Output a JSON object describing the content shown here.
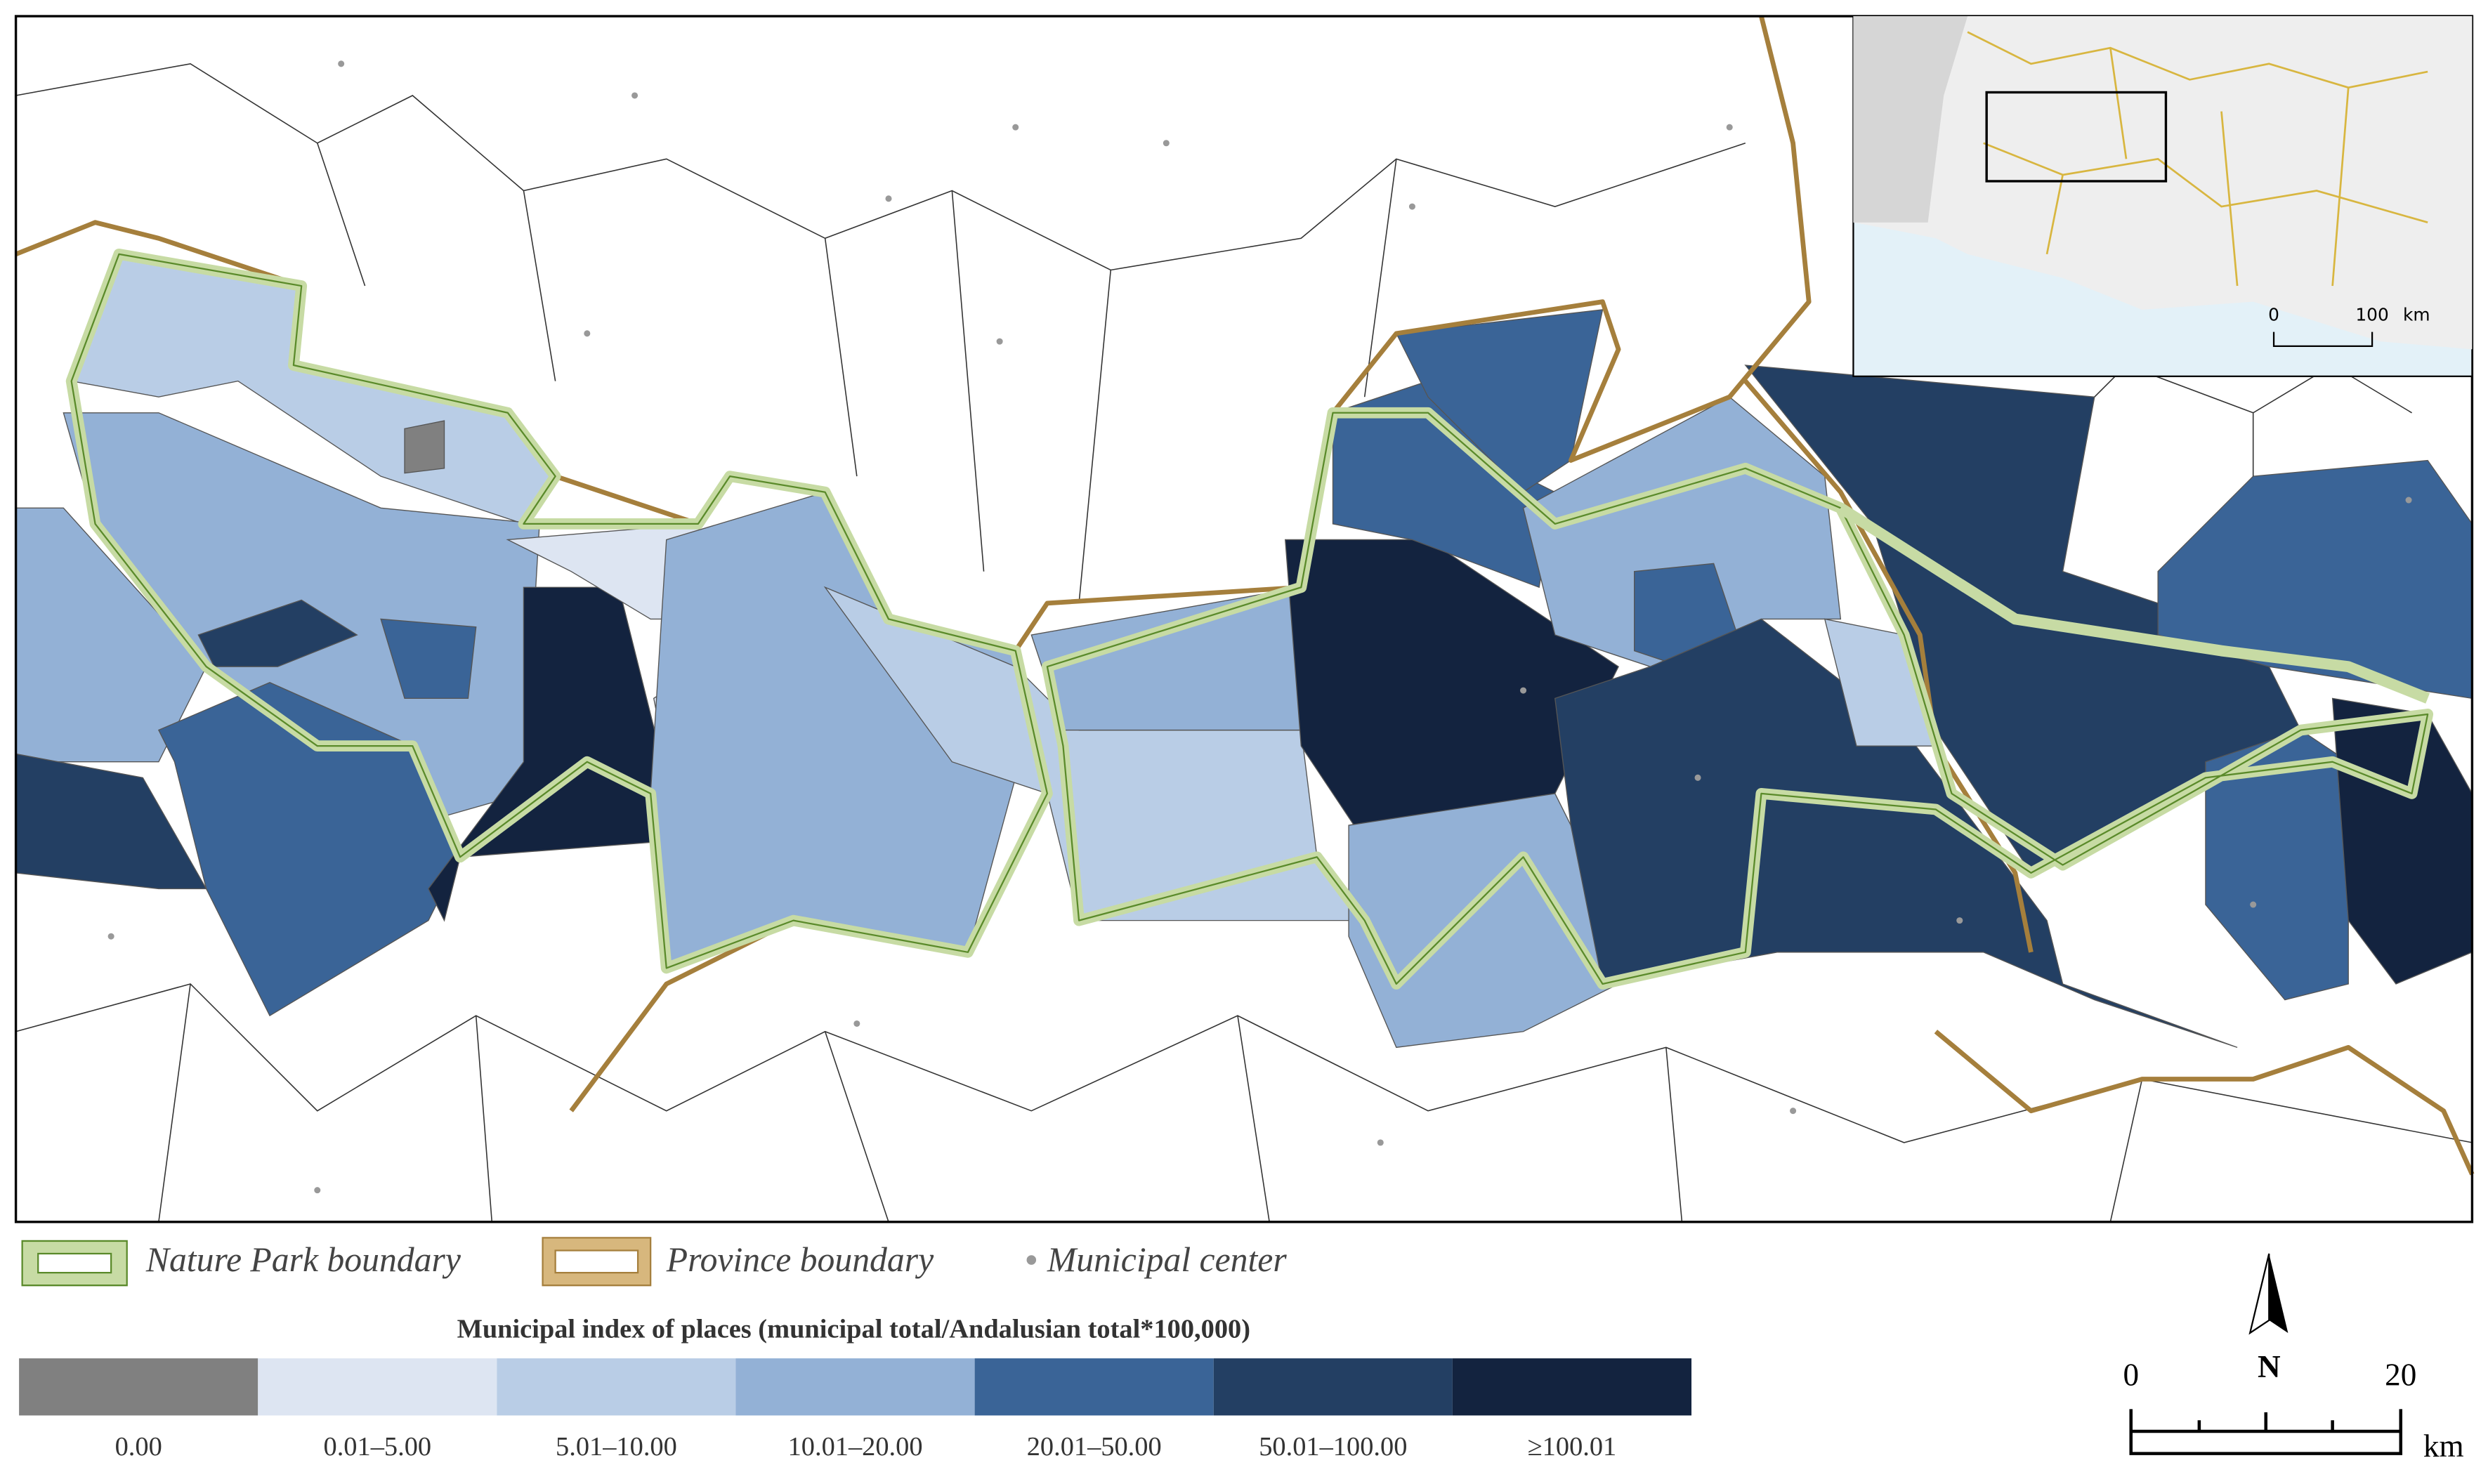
{
  "map": {
    "legend_items": [
      "Nature Park boundary",
      "Province boundary",
      "Municipal center"
    ],
    "legend_title": "Municipal index of places (municipal total/Andalusian total*100,000)",
    "classes": [
      {
        "label": "0.00",
        "color": "#808080"
      },
      {
        "label": "0.01–5.00",
        "color": "#dde5f2"
      },
      {
        "label": "5.01–10.00",
        "color": "#b9cde6"
      },
      {
        "label": "10.01–20.00",
        "color": "#93b1d6"
      },
      {
        "label": "20.01–50.00",
        "color": "#3a6497"
      },
      {
        "label": "50.01–100.00",
        "color": "#233f63"
      },
      {
        "label": "≥100.01",
        "color": "#13233f"
      }
    ],
    "scale_bar": {
      "labels": [
        "0",
        "20",
        "km"
      ]
    },
    "north_label": "N",
    "inset": {
      "scale_labels": [
        "0",
        "100",
        "km"
      ]
    }
  }
}
